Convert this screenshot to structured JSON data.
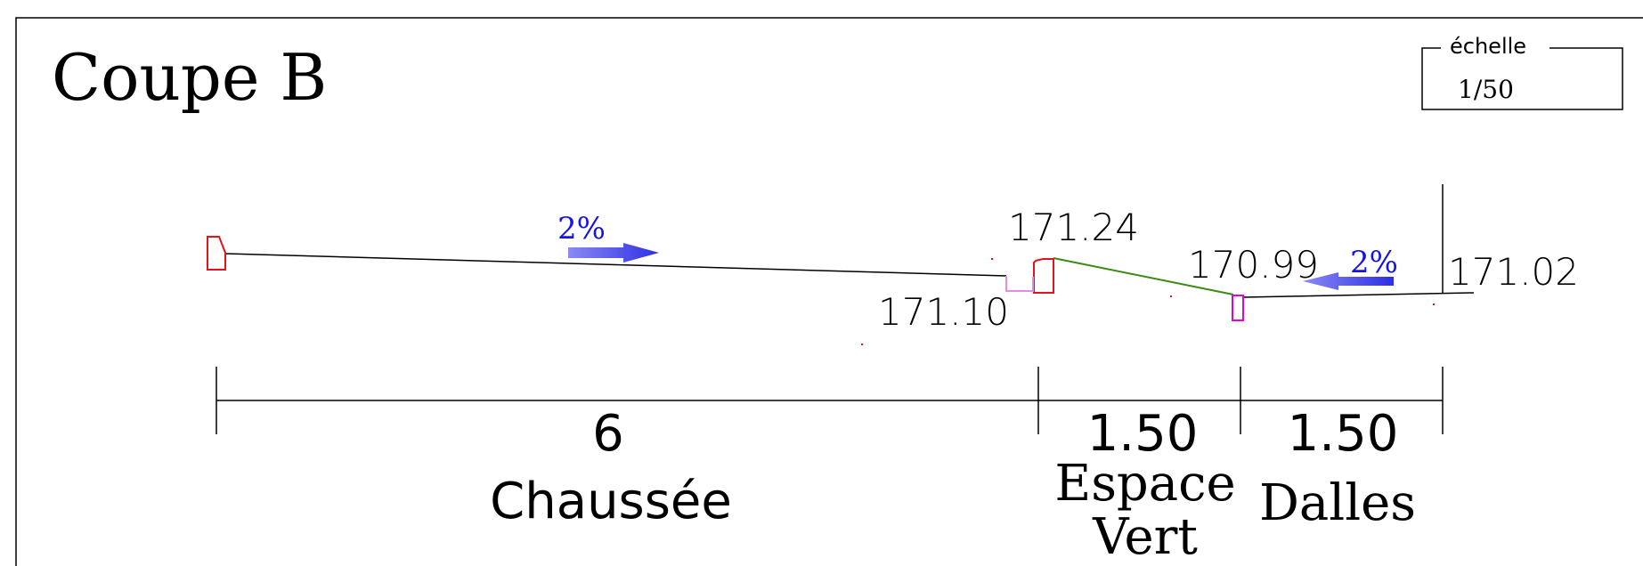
{
  "title": "Coupe B",
  "scale": {
    "label": "échelle",
    "value": "1/50"
  },
  "slopes": [
    {
      "text": "2%",
      "direction": "right"
    },
    {
      "text": "2%",
      "direction": "left"
    }
  ],
  "elevations": [
    "171.24",
    "171.10",
    "170.99",
    "171.02"
  ],
  "dimensions": [
    {
      "value": "6",
      "label_lines": [
        "Chaussée"
      ]
    },
    {
      "value": "1.50",
      "label_lines": [
        "Espace",
        "Vert"
      ]
    },
    {
      "value": "1.50",
      "label_lines": [
        "Dalles"
      ]
    }
  ],
  "colors": {
    "line": "#000000",
    "curb": "#e0141e",
    "edge": "#e000d8",
    "green": "#3c8a14",
    "slope": "#1414e6",
    "arrow": "#3a3ae8"
  }
}
